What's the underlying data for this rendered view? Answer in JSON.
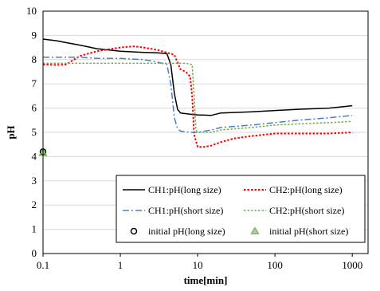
{
  "chart_data": {
    "type": "line",
    "xscale": "log",
    "xlim": [
      0.1,
      1600
    ],
    "ylim": [
      0,
      10
    ],
    "x_ticks": [
      0.1,
      1,
      10,
      100,
      1000
    ],
    "x_tick_labels": [
      "0.1",
      "1",
      "10",
      "100",
      "1000"
    ],
    "y_ticks": [
      0,
      1,
      2,
      3,
      4,
      5,
      6,
      7,
      8,
      9,
      10
    ],
    "y_tick_labels": [
      "0",
      "1",
      "2",
      "3",
      "4",
      "5",
      "6",
      "7",
      "8",
      "9",
      "10"
    ],
    "xlabel": "time[min]",
    "ylabel": "pH",
    "grid": "horizontal",
    "legend_position": "bottom-right",
    "series": [
      {
        "name": "CH1:pH(long size)",
        "color": "#000000",
        "style": "solid",
        "x": [
          0.1,
          0.15,
          0.2,
          0.3,
          0.5,
          1,
          2,
          3,
          4,
          4.5,
          5,
          5.5,
          6,
          8,
          10,
          15,
          20,
          50,
          100,
          200,
          500,
          1000
        ],
        "y": [
          8.85,
          8.78,
          8.7,
          8.6,
          8.45,
          8.35,
          8.3,
          8.28,
          8.25,
          7.8,
          6.6,
          5.95,
          5.8,
          5.75,
          5.72,
          5.7,
          5.8,
          5.85,
          5.9,
          5.95,
          6.0,
          6.1
        ]
      },
      {
        "name": "CH2:pH(long size)",
        "color": "#ff0000",
        "style": "dotted",
        "x": [
          0.1,
          0.15,
          0.2,
          0.25,
          0.3,
          0.5,
          1,
          1.5,
          2,
          3,
          5,
          6,
          7,
          8,
          8.5,
          9,
          10,
          12,
          15,
          20,
          30,
          50,
          100,
          200,
          500,
          1000
        ],
        "y": [
          7.8,
          7.78,
          7.8,
          8.0,
          8.15,
          8.35,
          8.5,
          8.55,
          8.5,
          8.4,
          8.2,
          7.6,
          7.5,
          7.3,
          6.5,
          4.9,
          4.4,
          4.4,
          4.45,
          4.6,
          4.75,
          4.85,
          4.95,
          4.95,
          4.95,
          5.0
        ]
      },
      {
        "name": "CH1:pH(short size)",
        "color": "#4a7ec4",
        "style": "dashdot",
        "x": [
          0.1,
          0.3,
          0.5,
          1,
          2,
          3,
          4,
          4.5,
          5,
          5.5,
          6,
          8,
          10,
          15,
          20,
          50,
          100,
          200,
          500,
          1000
        ],
        "y": [
          8.1,
          8.1,
          8.05,
          8.05,
          8.0,
          7.9,
          7.8,
          7.0,
          5.6,
          5.15,
          5.05,
          5.0,
          5.0,
          5.1,
          5.2,
          5.3,
          5.4,
          5.5,
          5.6,
          5.7
        ]
      },
      {
        "name": "CH2:pH(short size)",
        "color": "#70ad47",
        "style": "dotted",
        "x": [
          0.1,
          0.5,
          1,
          2,
          3,
          5,
          7,
          8.5,
          9,
          9.5,
          10,
          15,
          20,
          50,
          100,
          200,
          500,
          1000
        ],
        "y": [
          7.85,
          7.85,
          7.85,
          7.85,
          7.85,
          7.85,
          7.85,
          7.8,
          6.5,
          5.1,
          5.0,
          5.0,
          5.1,
          5.2,
          5.3,
          5.35,
          5.4,
          5.45
        ]
      }
    ],
    "markers": [
      {
        "name": "initial pH(long size)",
        "x": 0.1,
        "y": 4.2,
        "shape": "circle",
        "color": "#000000"
      },
      {
        "name": "initial pH(short size)",
        "x": 0.1,
        "y": 4.15,
        "shape": "triangle",
        "color": "#70ad47"
      }
    ]
  }
}
